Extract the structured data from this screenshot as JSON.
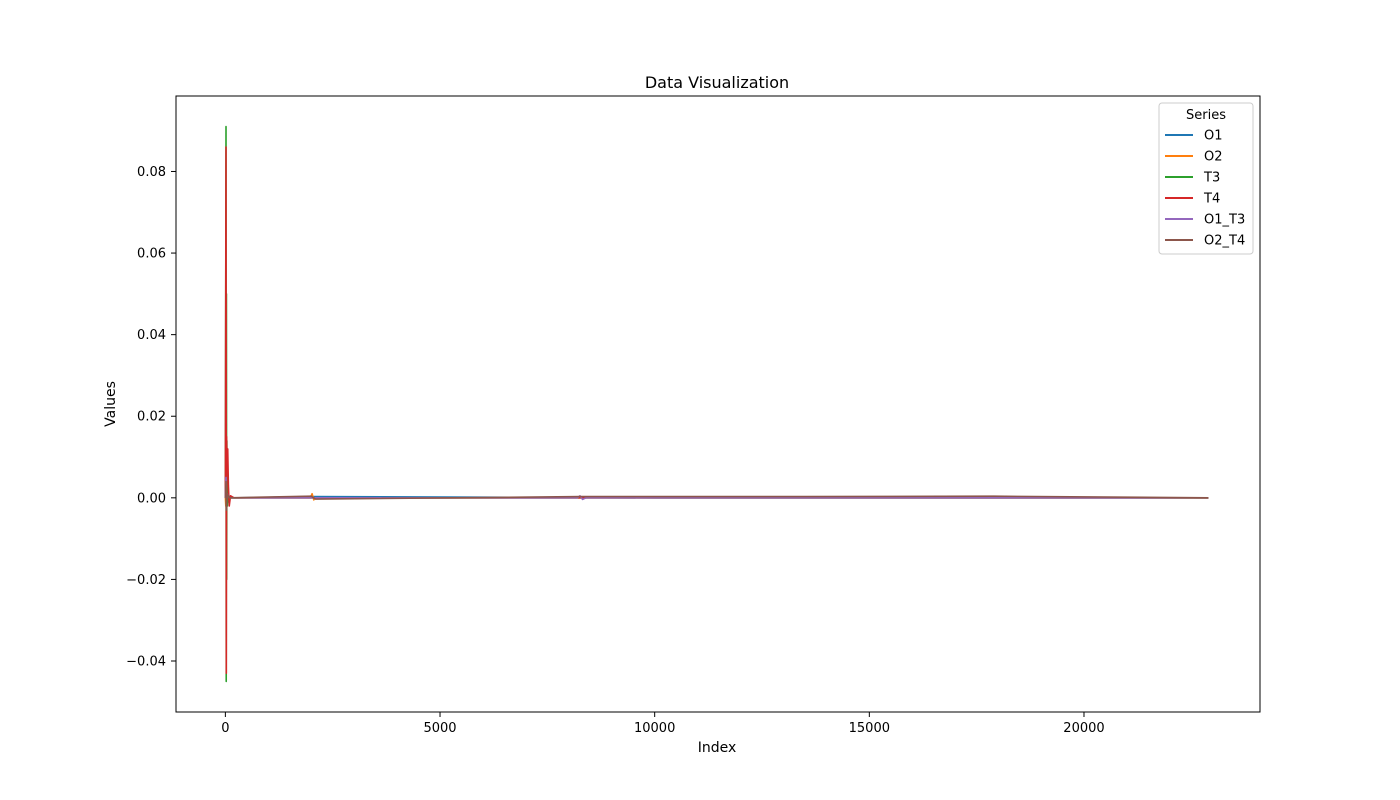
{
  "chart_data": {
    "type": "line",
    "title": "Data Visualization",
    "xlabel": "Index",
    "ylabel": "Values",
    "xlim": [
      -1150,
      24100
    ],
    "ylim": [
      -0.0525,
      0.0985
    ],
    "xticks": [
      0,
      5000,
      10000,
      15000,
      20000
    ],
    "xtick_labels": [
      "0",
      "5000",
      "10000",
      "15000",
      "20000"
    ],
    "yticks": [
      -0.04,
      -0.02,
      0.0,
      0.02,
      0.04,
      0.06,
      0.08
    ],
    "ytick_labels": [
      "−0.04",
      "−0.02",
      "0.00",
      "0.02",
      "0.04",
      "0.06",
      "0.08"
    ],
    "grid": false,
    "legend": {
      "title": "Series",
      "placement": "top-right"
    },
    "series": [
      {
        "name": "O1",
        "color": "#1f77b4",
        "points": [
          [
            0,
            0.0
          ],
          [
            10,
            0.003
          ],
          [
            20,
            -0.002
          ],
          [
            30,
            0.004
          ],
          [
            40,
            0.001
          ],
          [
            60,
            -0.001
          ],
          [
            100,
            0.0
          ],
          [
            300,
            0.0
          ],
          [
            2000,
            0.0003
          ],
          [
            10000,
            0.0
          ],
          [
            22900,
            0.0
          ]
        ]
      },
      {
        "name": "O2",
        "color": "#ff7f0e",
        "points": [
          [
            0,
            0.0
          ],
          [
            10,
            -0.002
          ],
          [
            20,
            0.002
          ],
          [
            40,
            -0.001
          ],
          [
            100,
            0.0
          ],
          [
            1980,
            0.0
          ],
          [
            2020,
            0.001
          ],
          [
            2060,
            -0.0005
          ],
          [
            2100,
            0.0
          ],
          [
            22900,
            0.0
          ]
        ]
      },
      {
        "name": "T3",
        "color": "#2ca02c",
        "points": [
          [
            0,
            0.0
          ],
          [
            15,
            0.091
          ],
          [
            20,
            -0.045
          ],
          [
            25,
            0.05
          ],
          [
            30,
            -0.02
          ],
          [
            35,
            0.014
          ],
          [
            45,
            -0.002
          ],
          [
            60,
            0.001
          ],
          [
            100,
            0.0
          ],
          [
            22900,
            0.0
          ]
        ]
      },
      {
        "name": "T4",
        "color": "#d62728",
        "points": [
          [
            0,
            0.0
          ],
          [
            15,
            0.086
          ],
          [
            22,
            -0.043
          ],
          [
            28,
            0.015
          ],
          [
            40,
            0.007
          ],
          [
            55,
            0.012
          ],
          [
            70,
            0.003
          ],
          [
            90,
            -0.002
          ],
          [
            120,
            0.0005
          ],
          [
            200,
            0.0
          ],
          [
            22900,
            0.0
          ]
        ]
      },
      {
        "name": "O1_T3",
        "color": "#9467bd",
        "points": [
          [
            0,
            0.0
          ],
          [
            15,
            0.005
          ],
          [
            25,
            -0.002
          ],
          [
            40,
            0.001
          ],
          [
            100,
            0.0
          ],
          [
            8200,
            0.0
          ],
          [
            8260,
            0.0005
          ],
          [
            8320,
            -0.0004
          ],
          [
            8400,
            0.0
          ],
          [
            22900,
            0.0
          ]
        ]
      },
      {
        "name": "O2_T4",
        "color": "#8c564b",
        "points": [
          [
            0,
            0.0
          ],
          [
            15,
            0.004
          ],
          [
            25,
            -0.003
          ],
          [
            40,
            0.001
          ],
          [
            100,
            0.0
          ],
          [
            2000,
            0.0004
          ],
          [
            2100,
            -0.0003
          ],
          [
            8300,
            0.0003
          ],
          [
            13500,
            0.0003
          ],
          [
            17900,
            0.0004
          ],
          [
            22900,
            0.0
          ]
        ]
      }
    ]
  }
}
